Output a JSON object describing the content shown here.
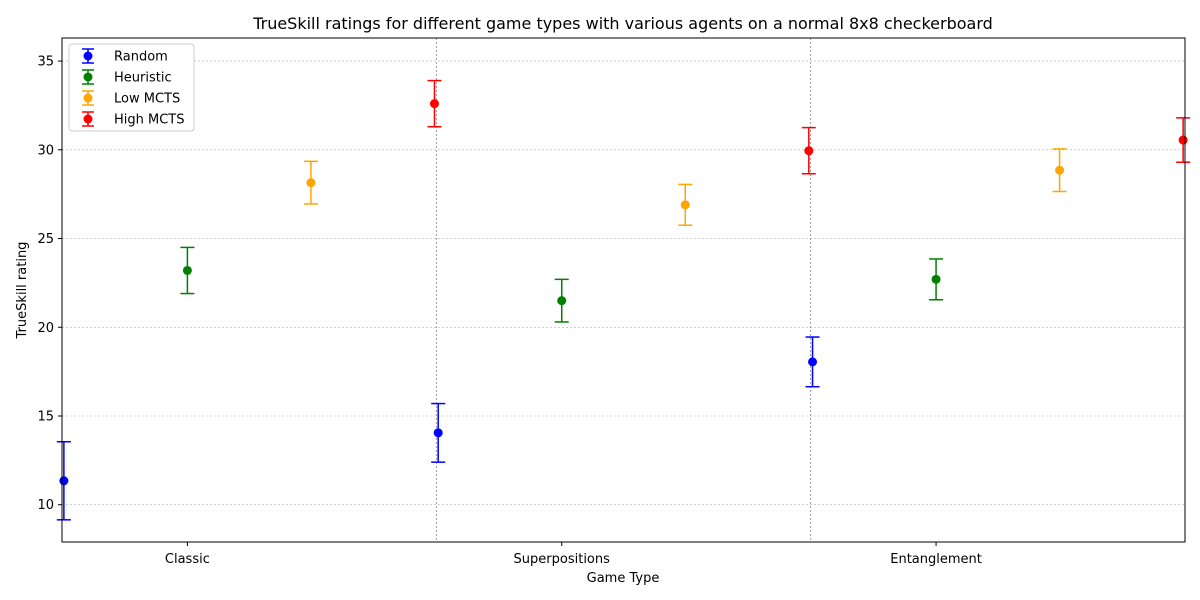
{
  "chart_data": {
    "type": "scatter",
    "title": "TrueSkill ratings for different game types with various agents on a normal 8x8 checkerboard",
    "xlabel": "Game Type",
    "ylabel": "TrueSkill rating",
    "categories": [
      "Classic",
      "Superpositions",
      "Entanglement"
    ],
    "ylim": [
      7.9,
      36.3
    ],
    "yticks": [
      10,
      15,
      20,
      25,
      30,
      35
    ],
    "grid": true,
    "legend_position": "top-left",
    "series": [
      {
        "name": "Random",
        "color": "#0000ff",
        "values": [
          11.35,
          14.05,
          18.05
        ],
        "errors": [
          2.2,
          1.65,
          1.4
        ]
      },
      {
        "name": "Heuristic",
        "color": "#008000",
        "values": [
          23.2,
          21.5,
          22.7
        ],
        "errors": [
          1.3,
          1.2,
          1.15
        ]
      },
      {
        "name": "Low MCTS",
        "color": "#ffa500",
        "values": [
          28.15,
          26.9,
          28.85
        ],
        "errors": [
          1.2,
          1.15,
          1.2
        ]
      },
      {
        "name": "High MCTS",
        "color": "#ff0000",
        "values": [
          32.6,
          29.95,
          30.55
        ],
        "errors": [
          1.3,
          1.3,
          1.25
        ]
      }
    ]
  }
}
